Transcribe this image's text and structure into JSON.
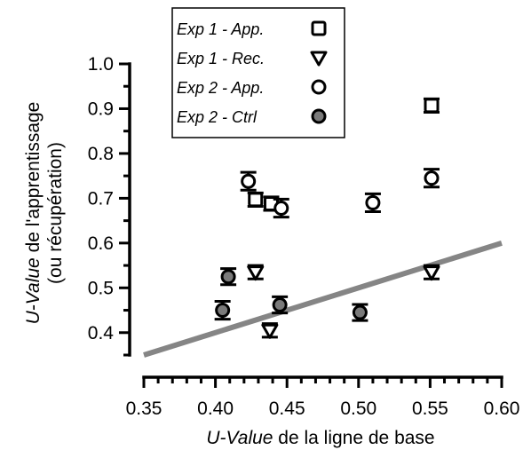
{
  "chart_data": {
    "type": "scatter",
    "title": "",
    "xlabel": {
      "italic": "U-Value",
      "rest": " de la ligne de base"
    },
    "ylabel": {
      "line1_italic": "U-Value",
      "line1_rest": " de l'apprentissage",
      "line2": "(ou récupération)"
    },
    "xlim": [
      0.35,
      0.6
    ],
    "ylim": [
      0.35,
      1.0
    ],
    "xticks": [
      "0.35",
      "0.40",
      "0.45",
      "0.50",
      "0.55",
      "0.60"
    ],
    "yticks": [
      "0.4",
      "0.5",
      "0.6",
      "0.7",
      "0.8",
      "0.9",
      "1.0"
    ],
    "grid": false,
    "legend_position": "top",
    "series": [
      {
        "name": "Exp 1 - App.",
        "marker": "square",
        "fill": "#ffffff",
        "points": [
          {
            "x": 0.428,
            "y": 0.697,
            "err": 0.015
          },
          {
            "x": 0.439,
            "y": 0.688,
            "err": 0.015
          },
          {
            "x": 0.551,
            "y": 0.907,
            "err": 0.015
          }
        ]
      },
      {
        "name": "Exp 1 - Rec.",
        "marker": "triangle-down",
        "fill": "#ffffff",
        "points": [
          {
            "x": 0.428,
            "y": 0.535,
            "err": 0.015
          },
          {
            "x": 0.438,
            "y": 0.405,
            "err": 0.015
          },
          {
            "x": 0.551,
            "y": 0.535,
            "err": 0.015
          }
        ]
      },
      {
        "name": "Exp 2 - App.",
        "marker": "circle",
        "fill": "#ffffff",
        "points": [
          {
            "x": 0.423,
            "y": 0.738,
            "err": 0.02
          },
          {
            "x": 0.446,
            "y": 0.678,
            "err": 0.02
          },
          {
            "x": 0.51,
            "y": 0.69,
            "err": 0.02
          },
          {
            "x": 0.551,
            "y": 0.745,
            "err": 0.02
          }
        ]
      },
      {
        "name": "Exp 2 - Ctrl",
        "marker": "circle",
        "fill": "#7a7a7a",
        "points": [
          {
            "x": 0.405,
            "y": 0.45,
            "err": 0.02
          },
          {
            "x": 0.409,
            "y": 0.525,
            "err": 0.018
          },
          {
            "x": 0.445,
            "y": 0.462,
            "err": 0.018
          },
          {
            "x": 0.501,
            "y": 0.445,
            "err": 0.018
          }
        ]
      }
    ],
    "reference_line": {
      "x1": 0.35,
      "y1": 0.35,
      "x2": 0.6,
      "y2": 0.6,
      "color": "#858585"
    },
    "colors": {
      "axis": "#000000",
      "reference_line": "#858585",
      "ctrl_fill": "#7a7a7a"
    }
  }
}
